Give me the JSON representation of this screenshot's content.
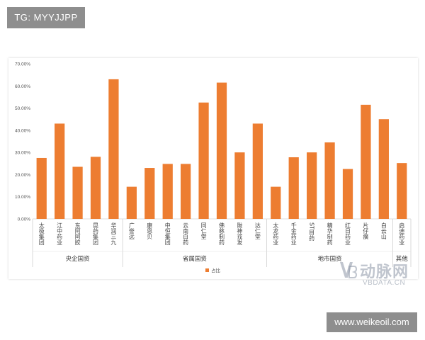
{
  "badges": {
    "tg": "TG: MYYJJPP",
    "site": "www.weikeoil.com"
  },
  "watermark": {
    "logo": "vb-logo-icon",
    "cn": "动脉网",
    "en": "VBDATA.CN"
  },
  "chart_data": {
    "type": "bar",
    "title": "",
    "xlabel": "",
    "ylabel": "",
    "ylim": [
      0,
      0.7
    ],
    "yticks": [
      "0.00%",
      "10.00%",
      "20.00%",
      "30.00%",
      "40.00%",
      "50.00%",
      "60.00%",
      "70.00%"
    ],
    "grid": false,
    "legend": "bottom",
    "bar_color": "#ED7D31",
    "series": [
      {
        "name": "占比",
        "values": [
          0.275,
          0.43,
          0.235,
          0.28,
          0.63,
          0.145,
          0.23,
          0.248,
          0.248,
          0.525,
          0.615,
          0.3,
          0.43,
          0.145,
          0.278,
          0.3,
          0.345,
          0.225,
          0.515,
          0.45,
          0.252
        ]
      }
    ],
    "categories": [
      "太极集团",
      "江中药业",
      "东阿阿胶",
      "昆药集团",
      "华润三九",
      "广誉远",
      "康恩贝",
      "中恒集团",
      "云南白药",
      "同仁堂",
      "佛慈制药",
      "陇神戎发",
      "达仁堂",
      "太龙药业",
      "千金药业",
      "ST目药",
      "精华制药",
      "红日药业",
      "片仔癀",
      "白云山",
      "启迪药业"
    ],
    "groups": [
      {
        "label": "央企国资",
        "start": 0,
        "end": 4
      },
      {
        "label": "省属国资",
        "start": 5,
        "end": 12
      },
      {
        "label": "地市国资",
        "start": 13,
        "end": 19
      },
      {
        "label": "其他",
        "start": 20,
        "end": 20
      }
    ]
  }
}
